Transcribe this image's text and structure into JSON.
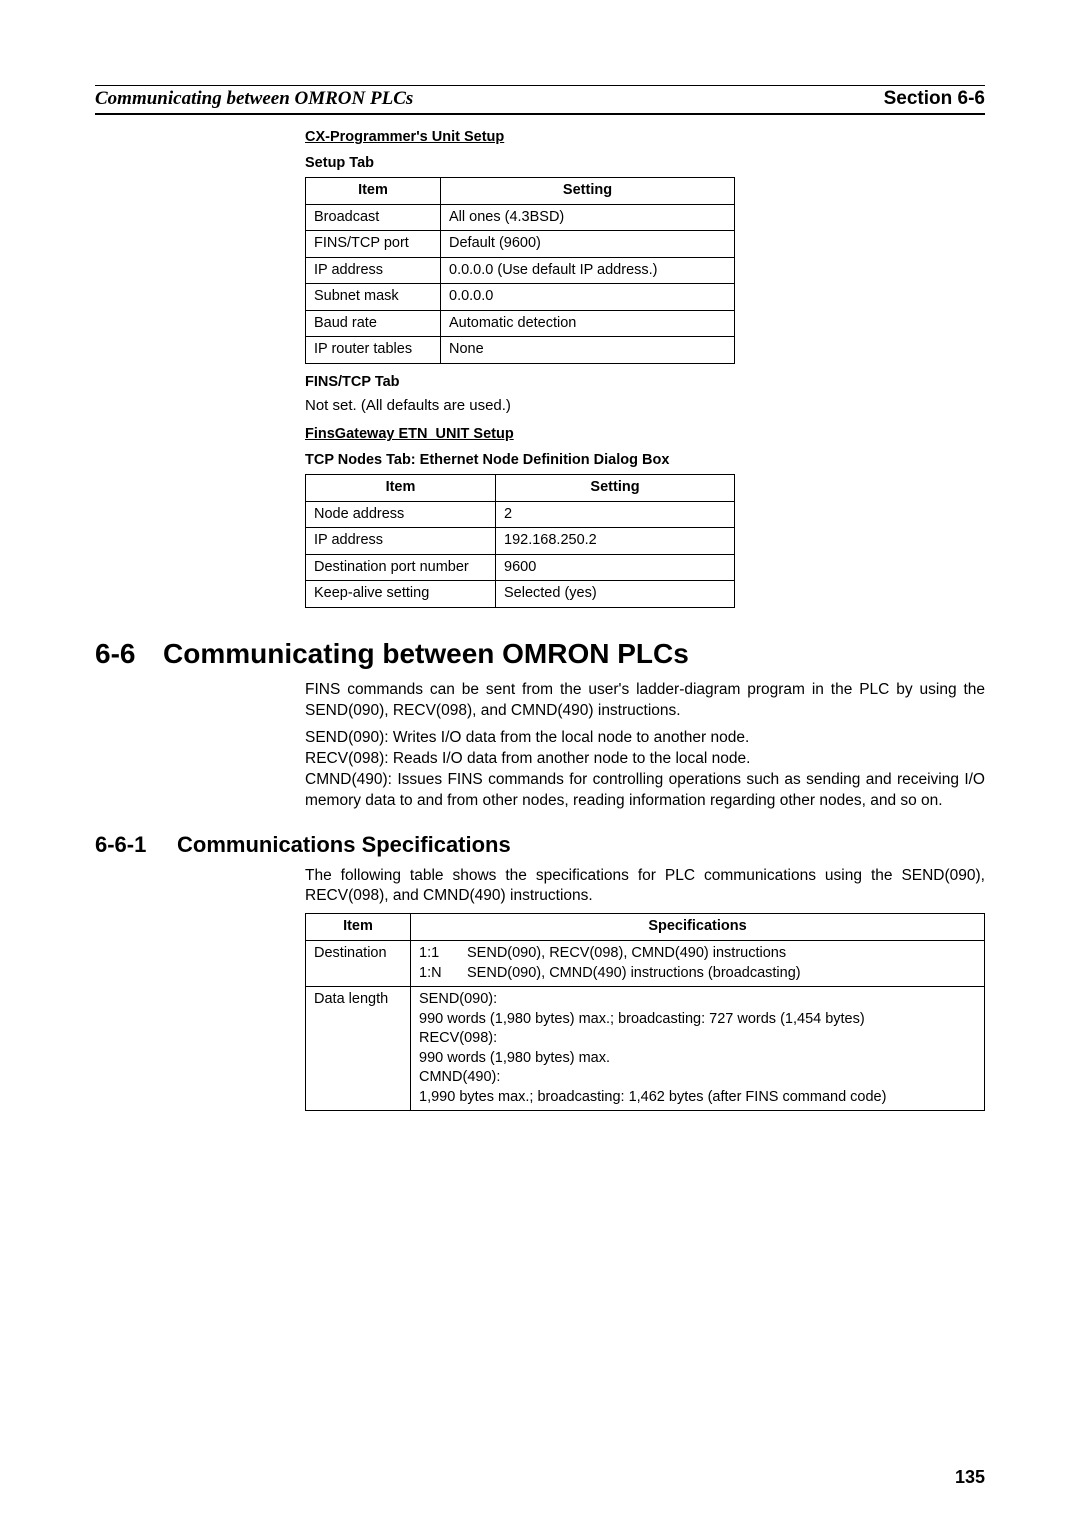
{
  "header": {
    "left": "Communicating between OMRON PLCs",
    "right_label": "Section",
    "right_num": "6-6"
  },
  "section1": {
    "title": "CX-Programmer's Unit Setup",
    "subtitle": "Setup Tab",
    "table": {
      "headers": [
        "Item",
        "Setting"
      ],
      "rows": [
        [
          "Broadcast",
          "All ones (4.3BSD)"
        ],
        [
          "FINS/TCP port",
          "Default (9600)"
        ],
        [
          "IP address",
          "0.0.0.0 (Use default IP address.)"
        ],
        [
          "Subnet mask",
          "0.0.0.0"
        ],
        [
          "Baud rate",
          "Automatic detection"
        ],
        [
          "IP router tables",
          "None"
        ]
      ]
    }
  },
  "fins_tcp": {
    "title": "FINS/TCP Tab",
    "text": "Not set. (All defaults are used.)"
  },
  "section2": {
    "title": "FinsGateway ETN_UNIT Setup",
    "subtitle": "TCP Nodes Tab: Ethernet Node Definition Dialog Box",
    "table": {
      "headers": [
        "Item",
        "Setting"
      ],
      "rows": [
        [
          "Node address",
          "2"
        ],
        [
          "IP address",
          "192.168.250.2"
        ],
        [
          "Destination port number",
          "9600"
        ],
        [
          "Keep-alive setting",
          "Selected (yes)"
        ]
      ]
    }
  },
  "h1": {
    "num": "6-6",
    "title": "Communicating between OMRON PLCs"
  },
  "body1": {
    "p1": "FINS commands can be sent from the user's ladder-diagram program in the PLC by using the SEND(090), RECV(098), and CMND(490) instructions.",
    "p2": "SEND(090): Writes I/O data from the local node to another node.",
    "p3": "RECV(098): Reads I/O data from another node to the local node.",
    "p4": "CMND(490): Issues FINS commands for controlling operations such as sending and receiving I/O memory data to and from other nodes, reading information regarding other nodes, and so on."
  },
  "h2": {
    "num": "6-6-1",
    "title": "Communications Specifications"
  },
  "body2": {
    "p1": "The following table shows the specifications for PLC communications using the SEND(090), RECV(098), and CMND(490) instructions."
  },
  "table3": {
    "headers": [
      "Item",
      "Specifications"
    ],
    "dest": {
      "label": "Destination",
      "r1k": "1:1",
      "r1v": "SEND(090), RECV(098), CMND(490) instructions",
      "r2k": "1:N",
      "r2v": "SEND(090), CMND(490) instructions (broadcasting)"
    },
    "len": {
      "label": "Data length",
      "l1": "SEND(090):",
      "l2": "990 words (1,980 bytes) max.; broadcasting: 727 words (1,454 bytes)",
      "l3": "RECV(098):",
      "l4": "990 words (1,980 bytes) max.",
      "l5": "CMND(490):",
      "l6": "1,990 bytes max.; broadcasting: 1,462 bytes (after FINS command code)"
    }
  },
  "page_number": "135"
}
